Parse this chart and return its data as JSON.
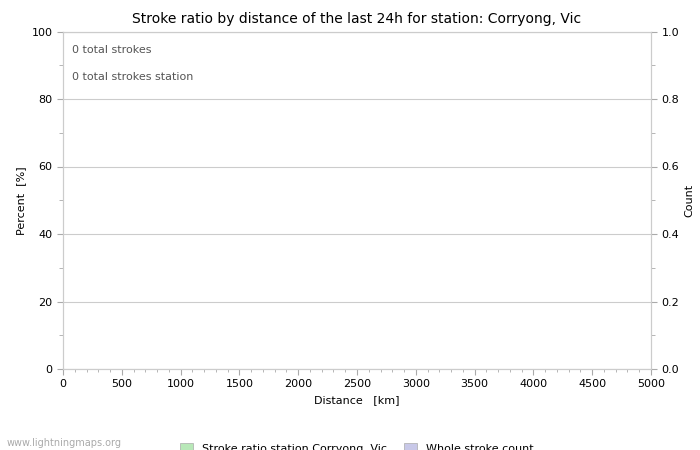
{
  "title": "Stroke ratio by distance of the last 24h for station: Corryong, Vic",
  "xlabel": "Distance   [km]",
  "ylabel_left": "Percent  [%]",
  "ylabel_right": "Count",
  "annotation_line1": "0 total strokes",
  "annotation_line2": "0 total strokes station",
  "xlim": [
    0,
    5000
  ],
  "ylim_left": [
    0,
    100
  ],
  "ylim_right": [
    0,
    1.0
  ],
  "xticks": [
    0,
    500,
    1000,
    1500,
    2000,
    2500,
    3000,
    3500,
    4000,
    4500,
    5000
  ],
  "yticks_left": [
    0,
    20,
    40,
    60,
    80,
    100
  ],
  "yticks_right": [
    0.0,
    0.2,
    0.4,
    0.6,
    0.8,
    1.0
  ],
  "yticks_right_labels": [
    "0.0",
    "0.2",
    "0.4",
    "0.6",
    "0.8",
    "1.0"
  ],
  "grid_color": "#cccccc",
  "background_color": "#ffffff",
  "legend_label_green": "Stroke ratio station Corryong, Vic",
  "legend_label_blue": "Whole stroke count",
  "legend_color_green": "#b8e8b8",
  "legend_color_blue": "#c8c8e8",
  "watermark": "www.lightningmaps.org",
  "title_fontsize": 10,
  "axis_label_fontsize": 8,
  "tick_fontsize": 8,
  "annotation_fontsize": 8
}
